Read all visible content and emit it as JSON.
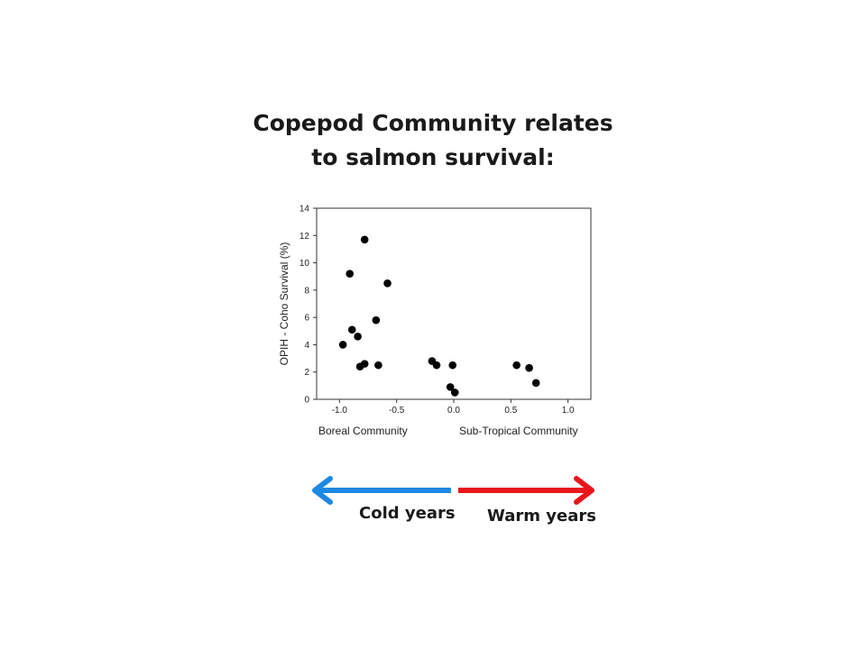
{
  "title": {
    "line1": "Copepod Community relates",
    "line2": "to salmon survival:"
  },
  "chart_data": {
    "type": "scatter",
    "title": "",
    "xlabel": "",
    "ylabel": "OPIH - Coho Survival (%)",
    "xlim": [
      -1.2,
      1.2
    ],
    "ylim": [
      0,
      14
    ],
    "xticks": [
      "-1.0",
      "-0.5",
      "0.0",
      "0.5",
      "1.0"
    ],
    "yticks": [
      "0",
      "2",
      "4",
      "6",
      "8",
      "10",
      "12",
      "14"
    ],
    "xtick_values": [
      -1.0,
      -0.5,
      0.0,
      0.5,
      1.0
    ],
    "ytick_values": [
      0,
      2,
      4,
      6,
      8,
      10,
      12,
      14
    ],
    "grid": false,
    "points": [
      {
        "x": -0.78,
        "y": 11.7
      },
      {
        "x": -0.91,
        "y": 9.2
      },
      {
        "x": -0.58,
        "y": 8.5
      },
      {
        "x": -0.68,
        "y": 5.8
      },
      {
        "x": -0.89,
        "y": 5.1
      },
      {
        "x": -0.84,
        "y": 4.6
      },
      {
        "x": -0.97,
        "y": 4.0
      },
      {
        "x": -0.78,
        "y": 2.6
      },
      {
        "x": -0.82,
        "y": 2.4
      },
      {
        "x": -0.66,
        "y": 2.5
      },
      {
        "x": -0.19,
        "y": 2.8
      },
      {
        "x": -0.15,
        "y": 2.5
      },
      {
        "x": -0.01,
        "y": 2.5
      },
      {
        "x": -0.03,
        "y": 0.9
      },
      {
        "x": 0.01,
        "y": 0.5
      },
      {
        "x": 0.55,
        "y": 2.5
      },
      {
        "x": 0.66,
        "y": 2.3
      },
      {
        "x": 0.72,
        "y": 1.2
      }
    ]
  },
  "axis_annotations": {
    "left": "Boreal Community",
    "right": "Sub-Tropical Community"
  },
  "arrows": {
    "cold_label": "Cold years",
    "warm_label": "Warm years",
    "cold_color": "#1e88e5",
    "warm_color": "#e8161b"
  }
}
